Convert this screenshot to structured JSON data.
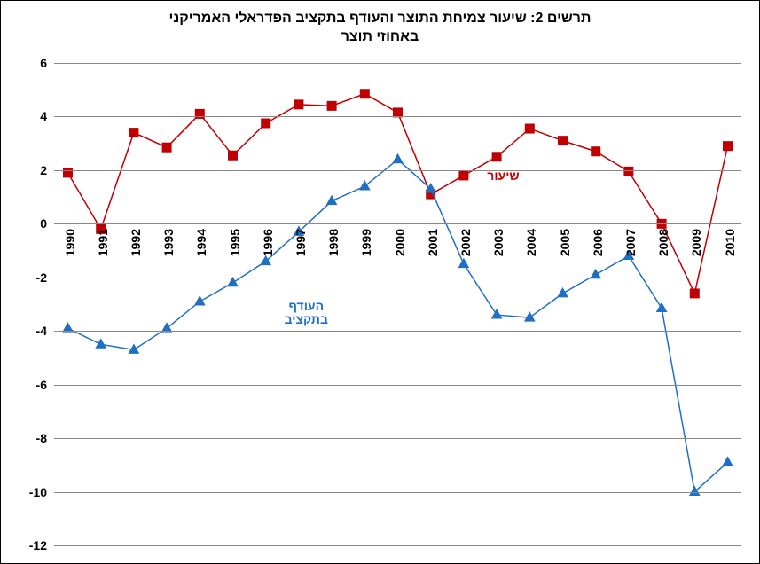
{
  "chart": {
    "type": "line",
    "title": "תרשים 2: שיעור צמיחת התוצר והעודף בתקציב הפדראלי האמריקני\nבאחוזי תוצר",
    "title_fontsize": 16,
    "title_fontweight": "bold",
    "background_color": "#ffffff",
    "border_color": "#000000",
    "grid_color": "#888888",
    "ylim": [
      -12,
      6
    ],
    "ytick_step": 2,
    "yticks": [
      6,
      4,
      2,
      0,
      -2,
      -4,
      -6,
      -8,
      -10,
      -12
    ],
    "x_categories": [
      "1990",
      "1991",
      "1992",
      "1993",
      "1994",
      "1995",
      "1996",
      "1997",
      "1998",
      "1999",
      "2000",
      "2001",
      "2002",
      "2003",
      "2004",
      "2005",
      "2006",
      "2007",
      "2008",
      "2009",
      "2010"
    ],
    "x_label_fontsize": 14,
    "x_label_rotation": -90,
    "y_label_fontsize": 14,
    "series": [
      {
        "name": "שיעור",
        "label": "שיעור",
        "label_color": "#c00000",
        "label_pos": {
          "x_frac": 0.63,
          "y_frac": 0.22
        },
        "color": "#c00000",
        "marker": "square",
        "marker_size": 10,
        "line_width": 1.5,
        "values": [
          1.9,
          -0.2,
          3.4,
          2.85,
          4.1,
          2.55,
          3.75,
          4.45,
          4.4,
          4.85,
          4.15,
          1.1,
          1.8,
          2.5,
          3.55,
          3.1,
          2.7,
          1.95,
          0.0,
          -2.6,
          2.9
        ]
      },
      {
        "name": "העודף בתקציב",
        "label": "העודף\nבתקציב",
        "label_color": "#1f6fc4",
        "label_pos": {
          "x_frac": 0.335,
          "y_frac": 0.49
        },
        "color": "#1f6fc4",
        "marker": "triangle",
        "marker_size": 11,
        "line_width": 1.5,
        "values": [
          -3.9,
          -4.5,
          -4.7,
          -3.9,
          -2.9,
          -2.2,
          -1.4,
          -0.3,
          0.85,
          1.4,
          2.4,
          1.3,
          -1.5,
          -3.4,
          -3.5,
          -2.6,
          -1.9,
          -1.2,
          -3.15,
          -10.0,
          -8.9
        ]
      }
    ]
  }
}
